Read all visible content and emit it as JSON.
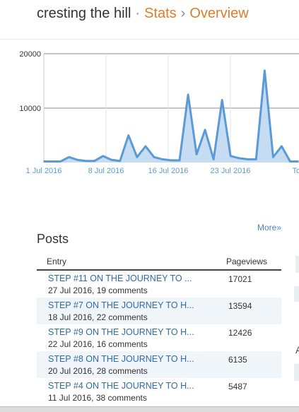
{
  "header": {
    "site": "cresting the hill",
    "separator": "·",
    "arrow": "›",
    "section": "Stats",
    "page": "Overview"
  },
  "chart_data": {
    "type": "area",
    "yticks": [
      "20000",
      "10000"
    ],
    "xticks": [
      "1 Jul 2016",
      "8 Jul 2016",
      "16 Jul 2016",
      "23 Jul 2016",
      "Toc"
    ],
    "ylim": [
      0,
      20000
    ],
    "x": [
      "2016-06-30",
      "2016-07-01",
      "2016-07-02",
      "2016-07-03",
      "2016-07-04",
      "2016-07-05",
      "2016-07-06",
      "2016-07-07",
      "2016-07-08",
      "2016-07-09",
      "2016-07-10",
      "2016-07-11",
      "2016-07-12",
      "2016-07-13",
      "2016-07-14",
      "2016-07-15",
      "2016-07-16",
      "2016-07-17",
      "2016-07-18",
      "2016-07-19",
      "2016-07-20",
      "2016-07-21",
      "2016-07-22",
      "2016-07-23",
      "2016-07-24",
      "2016-07-25",
      "2016-07-26",
      "2016-07-27",
      "2016-07-28",
      "2016-07-29",
      "2016-07-30"
    ],
    "values": [
      200,
      200,
      200,
      1000,
      500,
      300,
      300,
      1200,
      500,
      300,
      5000,
      1000,
      3000,
      1000,
      600,
      400,
      400,
      12500,
      1500,
      6000,
      600,
      11500,
      1200,
      800,
      600,
      600,
      16900,
      1000,
      3000,
      200,
      200
    ],
    "grid": true
  },
  "more_label": "More»",
  "posts": {
    "title": "Posts",
    "col_entry": "Entry",
    "col_views": "Pageviews",
    "rows": [
      {
        "title": "STEP #11 ON THE JOURNEY TO ...",
        "meta": "27 Jul 2016, 19 comments",
        "views": "17021"
      },
      {
        "title": "STEP #7 ON THE JOURNEY TO H...",
        "meta": "18 Jul 2016, 22 comments",
        "views": "13594"
      },
      {
        "title": "STEP #9 ON THE JOURNEY TO H...",
        "meta": "22 Jul 2016, 16 comments",
        "views": "12426"
      },
      {
        "title": "STEP #8 ON THE JOURNEY TO H...",
        "meta": "20 Jul 2016, 28 comments",
        "views": "6135"
      },
      {
        "title": "STEP #4 ON THE JOURNEY TO H...",
        "meta": "11 Jul 2016, 38 comments",
        "views": "5487"
      }
    ]
  },
  "right_panel": {
    "letter": "A"
  },
  "colors": {
    "accent": "#e07b2a",
    "link": "#2e6aa8",
    "line": "#5b9bd5",
    "fill": "#c5dcf2"
  }
}
